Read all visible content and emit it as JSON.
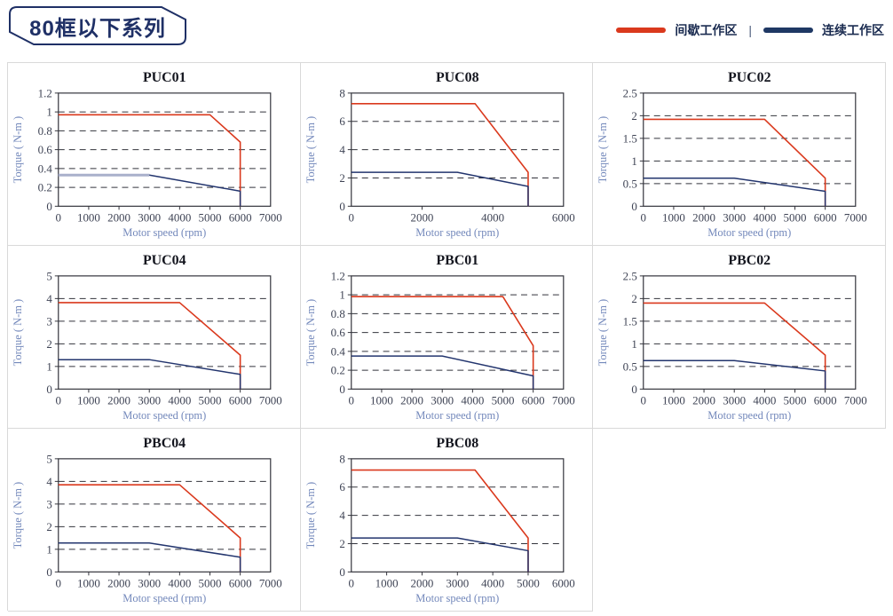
{
  "header": {
    "title": "80框以下系列"
  },
  "legend": {
    "items": [
      {
        "name": "intermittent-zone",
        "label": "间歇工作区",
        "color": "#da391d"
      },
      {
        "name": "continuous-zone",
        "label": "连续工作区",
        "color": "#1f3864"
      }
    ],
    "separator": "|"
  },
  "colors": {
    "red": "#da391d",
    "navy": "#23356e",
    "frame": "#33343c",
    "grid": "#33343c",
    "tick_text": "#3f4455",
    "axis_title": "#7388bb",
    "chart_title": "#14161f",
    "cell_border": "#d9d9d9",
    "header_accent": "#1f3066",
    "puc01_flat_overlay": "#a9b0cb"
  },
  "chart_data": [
    {
      "type": "line",
      "title": "PUC01",
      "xlabel": "Motor speed (rpm)",
      "ylabel": "Torque ( N-m )",
      "xlim": [
        0,
        7000
      ],
      "ylim": [
        0,
        1.2
      ],
      "xticks": [
        0,
        1000,
        2000,
        3000,
        4000,
        5000,
        6000,
        7000
      ],
      "yticks": [
        0,
        0.2,
        0.4,
        0.6,
        0.8,
        1,
        1.2
      ],
      "grid": "dashed-horizontal",
      "legend_position": "none",
      "series": [
        {
          "name": "间歇工作区",
          "color": "red",
          "points": [
            [
              0,
              0.97
            ],
            [
              5000,
              0.97
            ],
            [
              6000,
              0.68
            ],
            [
              6000,
              0
            ]
          ]
        },
        {
          "name": "连续工作区",
          "color": "navy",
          "points": [
            [
              0,
              0.33
            ],
            [
              3000,
              0.33
            ],
            [
              6000,
              0.16
            ],
            [
              6000,
              0
            ]
          ]
        }
      ],
      "flat_overlay": {
        "points": [
          [
            0,
            0.33
          ],
          [
            3000,
            0.33
          ]
        ],
        "color_key": "puc01_flat_overlay"
      }
    },
    {
      "type": "line",
      "title": "PUC08",
      "xlabel": "Motor speed (rpm)",
      "ylabel": "Torque ( N-m )",
      "xlim": [
        0,
        6000
      ],
      "ylim": [
        0,
        8
      ],
      "xticks": [
        0,
        2000,
        4000,
        6000
      ],
      "yticks": [
        0,
        2,
        4,
        6,
        8
      ],
      "grid": "dashed-horizontal",
      "legend_position": "none",
      "series": [
        {
          "name": "间歇工作区",
          "color": "red",
          "points": [
            [
              0,
              7.25
            ],
            [
              3500,
              7.25
            ],
            [
              5000,
              2.4
            ],
            [
              5000,
              0
            ]
          ]
        },
        {
          "name": "连续工作区",
          "color": "navy",
          "points": [
            [
              0,
              2.4
            ],
            [
              3000,
              2.4
            ],
            [
              5000,
              1.4
            ],
            [
              5000,
              0
            ]
          ]
        }
      ]
    },
    {
      "type": "line",
      "title": "PUC02",
      "xlabel": "Motor speed (rpm)",
      "ylabel": "Torque ( N-m )",
      "xlim": [
        0,
        7000
      ],
      "ylim": [
        0,
        2.5
      ],
      "xticks": [
        0,
        1000,
        2000,
        3000,
        4000,
        5000,
        6000,
        7000
      ],
      "yticks": [
        0,
        0.5,
        1,
        1.5,
        2,
        2.5
      ],
      "grid": "dashed-horizontal",
      "legend_position": "none",
      "series": [
        {
          "name": "间歇工作区",
          "color": "red",
          "points": [
            [
              0,
              1.92
            ],
            [
              4000,
              1.92
            ],
            [
              6000,
              0.62
            ],
            [
              6000,
              0
            ]
          ]
        },
        {
          "name": "连续工作区",
          "color": "navy",
          "points": [
            [
              0,
              0.62
            ],
            [
              3000,
              0.62
            ],
            [
              6000,
              0.33
            ],
            [
              6000,
              0
            ]
          ]
        }
      ]
    },
    {
      "type": "line",
      "title": "PUC04",
      "xlabel": "Motor speed (rpm)",
      "ylabel": "Torque ( N-m )",
      "xlim": [
        0,
        7000
      ],
      "ylim": [
        0,
        5
      ],
      "xticks": [
        0,
        1000,
        2000,
        3000,
        4000,
        5000,
        6000,
        7000
      ],
      "yticks": [
        0,
        1,
        2,
        3,
        4,
        5
      ],
      "grid": "dashed-horizontal",
      "legend_position": "none",
      "series": [
        {
          "name": "间歇工作区",
          "color": "red",
          "points": [
            [
              0,
              3.82
            ],
            [
              4000,
              3.82
            ],
            [
              6000,
              1.5
            ],
            [
              6000,
              0
            ]
          ]
        },
        {
          "name": "连续工作区",
          "color": "navy",
          "points": [
            [
              0,
              1.3
            ],
            [
              3000,
              1.3
            ],
            [
              6000,
              0.65
            ],
            [
              6000,
              0
            ]
          ]
        }
      ]
    },
    {
      "type": "line",
      "title": "PBC01",
      "xlabel": "Motor speed (rpm)",
      "ylabel": "Torque ( N-m )",
      "xlim": [
        0,
        7000
      ],
      "ylim": [
        0,
        1.2
      ],
      "xticks": [
        0,
        1000,
        2000,
        3000,
        4000,
        5000,
        6000,
        7000
      ],
      "yticks": [
        0,
        0.2,
        0.4,
        0.6,
        0.8,
        1,
        1.2
      ],
      "grid": "dashed-horizontal",
      "legend_position": "none",
      "series": [
        {
          "name": "间歇工作区",
          "color": "red",
          "points": [
            [
              0,
              0.98
            ],
            [
              5000,
              0.98
            ],
            [
              6000,
              0.46
            ],
            [
              6000,
              0
            ]
          ]
        },
        {
          "name": "连续工作区",
          "color": "navy",
          "points": [
            [
              0,
              0.35
            ],
            [
              3000,
              0.35
            ],
            [
              6000,
              0.14
            ],
            [
              6000,
              0
            ]
          ]
        }
      ]
    },
    {
      "type": "line",
      "title": "PBC02",
      "xlabel": "Motor speed (rpm)",
      "ylabel": "Torque ( N-m )",
      "xlim": [
        0,
        7000
      ],
      "ylim": [
        0,
        2.5
      ],
      "xticks": [
        0,
        1000,
        2000,
        3000,
        4000,
        5000,
        6000,
        7000
      ],
      "yticks": [
        0,
        0.5,
        1,
        1.5,
        2,
        2.5
      ],
      "grid": "dashed-horizontal",
      "legend_position": "none",
      "series": [
        {
          "name": "间歇工作区",
          "color": "red",
          "points": [
            [
              0,
              1.9
            ],
            [
              4000,
              1.9
            ],
            [
              6000,
              0.75
            ],
            [
              6000,
              0
            ]
          ]
        },
        {
          "name": "连续工作区",
          "color": "navy",
          "points": [
            [
              0,
              0.63
            ],
            [
              3000,
              0.63
            ],
            [
              6000,
              0.4
            ],
            [
              6000,
              0
            ]
          ]
        }
      ]
    },
    {
      "type": "line",
      "title": "PBC04",
      "xlabel": "Motor speed (rpm)",
      "ylabel": "Torque ( N-m )",
      "xlim": [
        0,
        7000
      ],
      "ylim": [
        0,
        5
      ],
      "xticks": [
        0,
        1000,
        2000,
        3000,
        4000,
        5000,
        6000,
        7000
      ],
      "yticks": [
        0,
        1,
        2,
        3,
        4,
        5
      ],
      "grid": "dashed-horizontal",
      "legend_position": "none",
      "series": [
        {
          "name": "间歇工作区",
          "color": "red",
          "points": [
            [
              0,
              3.85
            ],
            [
              4000,
              3.85
            ],
            [
              6000,
              1.5
            ],
            [
              6000,
              0
            ]
          ]
        },
        {
          "name": "连续工作区",
          "color": "navy",
          "points": [
            [
              0,
              1.28
            ],
            [
              3000,
              1.28
            ],
            [
              6000,
              0.65
            ],
            [
              6000,
              0
            ]
          ]
        }
      ]
    },
    {
      "type": "line",
      "title": "PBC08",
      "xlabel": "Motor speed (rpm)",
      "ylabel": "Torque ( N-m )",
      "xlim": [
        0,
        6000
      ],
      "ylim": [
        0,
        8
      ],
      "xticks": [
        0,
        1000,
        2000,
        3000,
        4000,
        5000,
        6000
      ],
      "yticks": [
        0,
        2,
        4,
        6,
        8
      ],
      "grid": "dashed-horizontal",
      "legend_position": "none",
      "series": [
        {
          "name": "间歇工作区",
          "color": "red",
          "points": [
            [
              0,
              7.2
            ],
            [
              3500,
              7.2
            ],
            [
              5000,
              2.4
            ],
            [
              5000,
              0
            ]
          ]
        },
        {
          "name": "连续工作区",
          "color": "navy",
          "points": [
            [
              0,
              2.4
            ],
            [
              3000,
              2.4
            ],
            [
              5000,
              1.5
            ],
            [
              5000,
              0
            ]
          ]
        }
      ]
    }
  ]
}
